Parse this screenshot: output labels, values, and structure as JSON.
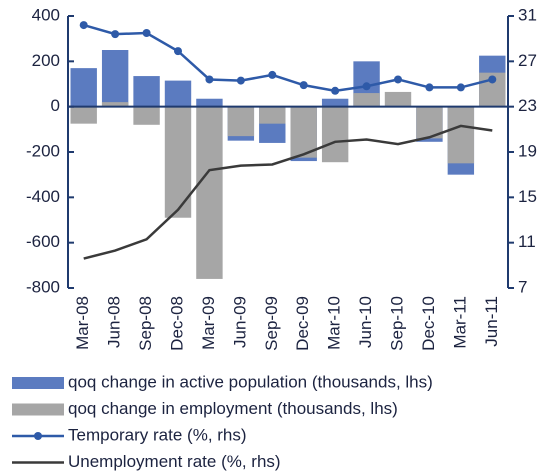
{
  "chart_data": {
    "type": "bar",
    "categories": [
      "Mar-08",
      "Jun-08",
      "Sep-08",
      "Dec-08",
      "Mar-09",
      "Jun-09",
      "Sep-09",
      "Dec-09",
      "Mar-10",
      "Jun-10",
      "Sep-10",
      "Dec-10",
      "Mar-11",
      "Jun-11"
    ],
    "series": [
      {
        "name": "qoq change in active population (thousands, lhs)",
        "type": "bar",
        "color": "#5b7bc0",
        "values": [
          170,
          250,
          135,
          115,
          35,
          -150,
          -160,
          -240,
          35,
          200,
          0,
          -155,
          -300,
          225
        ]
      },
      {
        "name": "qoq change in employment (thousands, lhs)",
        "type": "bar",
        "color": "#a6a6a6",
        "values": [
          -75,
          20,
          -80,
          -490,
          -760,
          -130,
          -75,
          -225,
          -245,
          60,
          65,
          -140,
          -250,
          150
        ]
      },
      {
        "name": "Temporary rate (%, rhs)",
        "type": "line",
        "axis": "y2",
        "marker": "circle",
        "color": "#2e5aa8",
        "values": [
          30.2,
          29.4,
          29.5,
          27.9,
          25.4,
          25.3,
          25.8,
          24.9,
          24.4,
          24.8,
          25.4,
          24.7,
          24.7,
          25.4
        ]
      },
      {
        "name": "Unemployment rate (%, rhs)",
        "type": "line",
        "axis": "y2",
        "color": "#3a3a3a",
        "values": [
          9.6,
          10.3,
          11.3,
          13.9,
          17.4,
          17.8,
          17.9,
          18.8,
          19.9,
          20.1,
          19.7,
          20.3,
          21.3,
          20.9
        ]
      }
    ],
    "ylim": [
      -800,
      400
    ],
    "yticks": [
      -800,
      -600,
      -400,
      -200,
      0,
      200,
      400
    ],
    "y2lim": [
      7,
      31
    ],
    "y2ticks": [
      7,
      11,
      15,
      19,
      23,
      27,
      31
    ],
    "legend": "bottom"
  }
}
